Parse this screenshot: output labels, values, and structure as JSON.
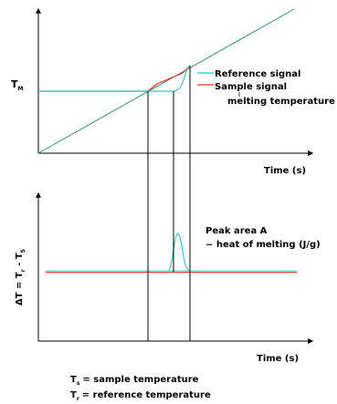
{
  "top_panel": {
    "y_axis_label": "T",
    "y_axis_label_sub": "M",
    "x_axis_label": "Time (s)",
    "legend": [
      {
        "label": "Reference signal",
        "color": "#3cc8c0"
      },
      {
        "label": "Sample signal",
        "color": "#e8302a"
      }
    ],
    "annotation": "melting temperature"
  },
  "bottom_panel": {
    "y_axis_label": "ΔT = T",
    "y_axis_label_sub1": "r",
    "y_axis_label_mid": " - T",
    "y_axis_label_sub2": "S",
    "x_axis_label": "Time (s)",
    "peak_label_line1": "Peak area A",
    "peak_label_line2": "~ heat of melting (J/g)"
  },
  "footnotes": [
    {
      "symbol": "T",
      "sub": "s",
      "text": "= sample temperature"
    },
    {
      "symbol": "T",
      "sub": "r",
      "text": "= reference temperature"
    }
  ],
  "colors": {
    "reference": "#3cc8c0",
    "sample": "#e8302a",
    "axis": "#000000",
    "program_line": "#3a8a78"
  }
}
